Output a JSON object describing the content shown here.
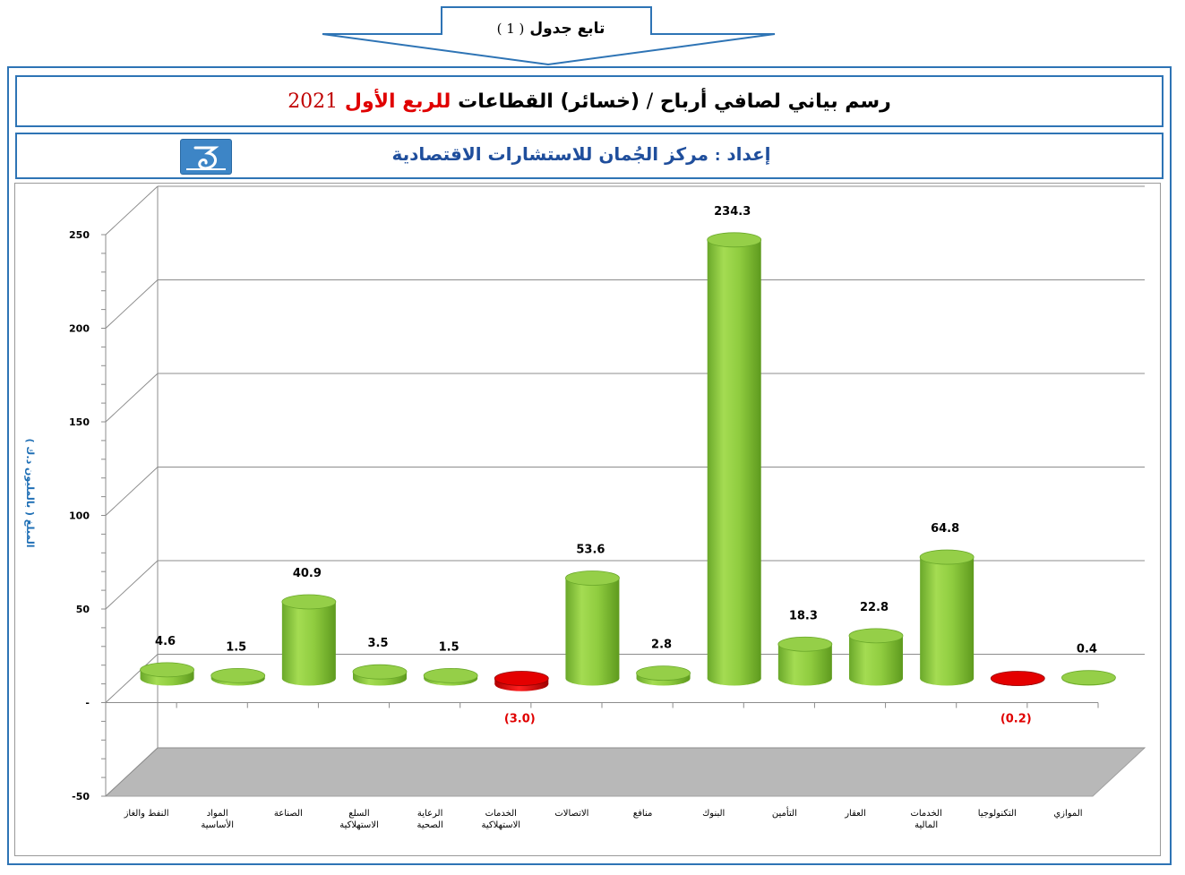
{
  "banner": {
    "text": "تابع جدول",
    "number": "( 1 )"
  },
  "title": {
    "part1": "رسم بياني لصافي أرباح",
    "slash": "/",
    "part2": "(خسائر) القطاعات",
    "red": "للربع الأول",
    "year": "2021"
  },
  "source": {
    "label": "إعداد",
    "colon": ":",
    "name": "مركز الجُمان للاستشارات الاقتصادية"
  },
  "chart_data": {
    "type": "bar",
    "ylabel": "المبلغ ( بالمليون د.ك )",
    "ylim": [
      -50,
      250
    ],
    "yticks": [
      -50,
      0,
      50,
      100,
      150,
      200,
      250
    ],
    "ytick_labels": [
      "-50",
      "-",
      "50",
      "100",
      "150",
      "200",
      "250"
    ],
    "categories": [
      [
        "النفط والغاز"
      ],
      [
        "المواد",
        "الأساسية"
      ],
      [
        "الصناعة"
      ],
      [
        "السلع",
        "الاستهلاكية"
      ],
      [
        "الرعاية",
        "الصحية"
      ],
      [
        "الخدمات",
        "الاستهلاكية"
      ],
      [
        "الاتصالات"
      ],
      [
        "منافع"
      ],
      [
        "البنوك"
      ],
      [
        "التأمين"
      ],
      [
        "العقار"
      ],
      [
        "الخدمات",
        "المالية"
      ],
      [
        "التكنولوجيا"
      ],
      [
        "الموازي"
      ]
    ],
    "values": [
      4.6,
      1.5,
      40.9,
      3.5,
      1.5,
      -3.0,
      53.6,
      2.8,
      234.3,
      18.3,
      22.8,
      64.8,
      -0.2,
      0.4
    ],
    "data_labels": [
      "4.6",
      "1.5",
      "40.9",
      "3.5",
      "1.5",
      "(3.0)",
      "53.6",
      "2.8",
      "234.3",
      "18.3",
      "22.8",
      "64.8",
      "(0.2)",
      "0.4"
    ],
    "grid": true,
    "colors": {
      "positive": "#8fcc3f",
      "positive_dark": "#5e9a1e",
      "negative": "#e00000",
      "negative_label": "#e00000",
      "floor": "#b8b8b8"
    }
  }
}
